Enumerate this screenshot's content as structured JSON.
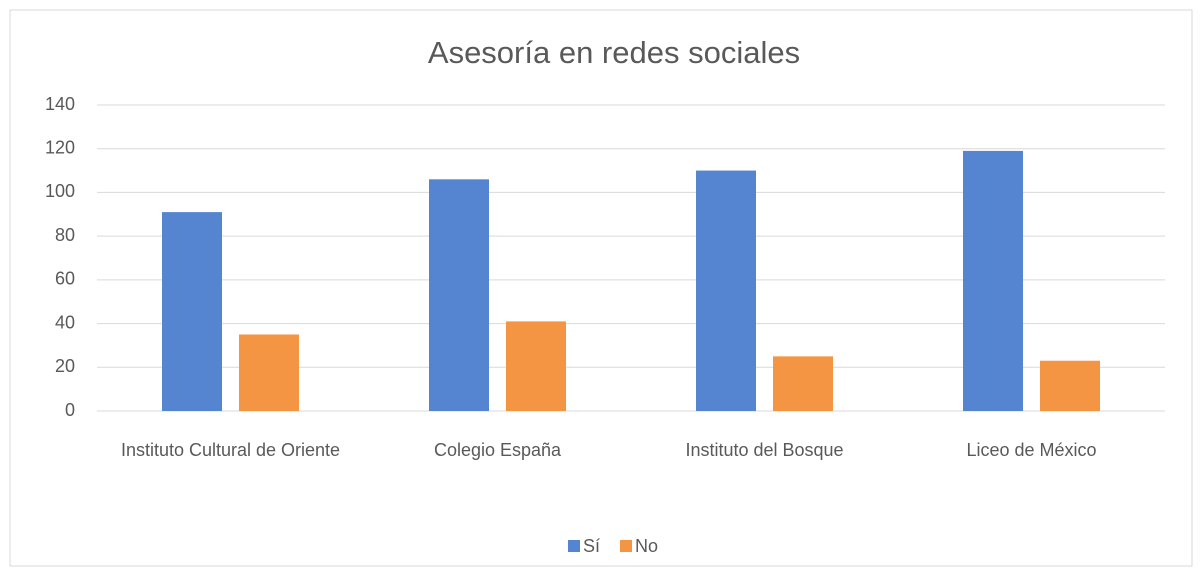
{
  "chart_data": {
    "type": "bar",
    "title": "Asesoría en redes sociales",
    "categories": [
      "Instituto Cultural de Oriente",
      "Colegio España",
      "Instituto del Bosque",
      "Liceo de México"
    ],
    "series": [
      {
        "name": "Sí",
        "color": "#5585d0",
        "values": [
          91,
          106,
          110,
          119
        ]
      },
      {
        "name": "No",
        "color": "#f39543",
        "values": [
          35,
          41,
          25,
          23
        ]
      }
    ],
    "ylim": [
      0,
      140
    ],
    "yticks": [
      0,
      20,
      40,
      60,
      80,
      100,
      120,
      140
    ],
    "grid": true,
    "legend": "bottom"
  }
}
